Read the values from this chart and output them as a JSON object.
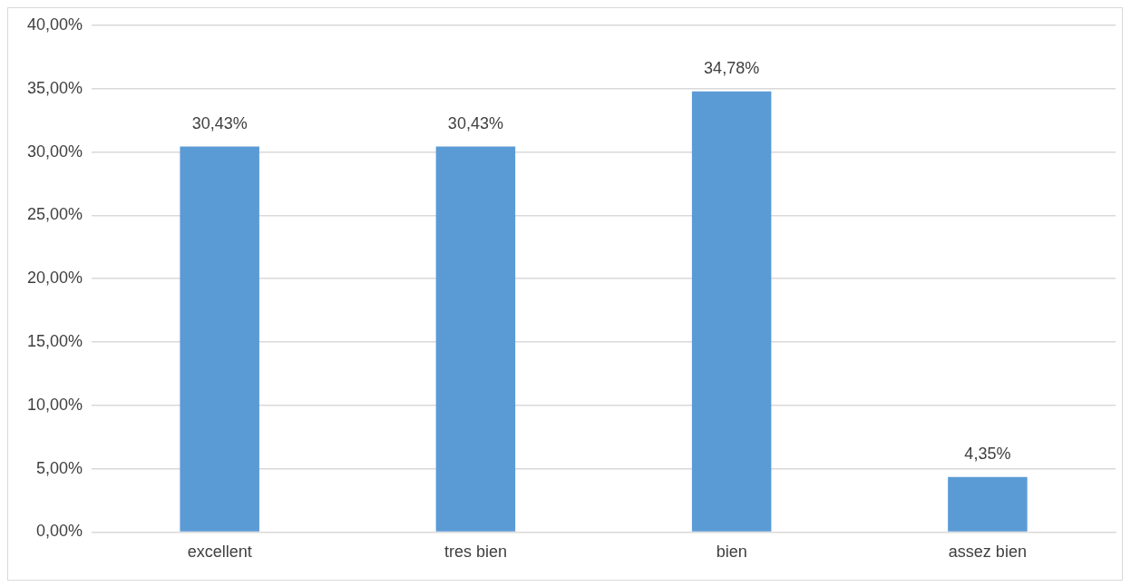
{
  "chart_data": {
    "type": "bar",
    "categories": [
      "excellent",
      "tres bien",
      "bien",
      "assez bien"
    ],
    "values": [
      30.43,
      30.43,
      34.78,
      4.35
    ],
    "value_labels": [
      "30,43%",
      "30,43%",
      "34,78%",
      "4,35%"
    ],
    "color": "#5b9bd5",
    "ylim": [
      0,
      40
    ],
    "yticks": [
      {
        "value": 0,
        "label": "0,00%"
      },
      {
        "value": 5,
        "label": "5,00%"
      },
      {
        "value": 10,
        "label": "10,00%"
      },
      {
        "value": 15,
        "label": "15,00%"
      },
      {
        "value": 20,
        "label": "20,00%"
      },
      {
        "value": 25,
        "label": "25,00%"
      },
      {
        "value": 30,
        "label": "30,00%"
      },
      {
        "value": 35,
        "label": "35,00%"
      },
      {
        "value": 40,
        "label": "40,00%"
      }
    ],
    "grid": "y"
  }
}
